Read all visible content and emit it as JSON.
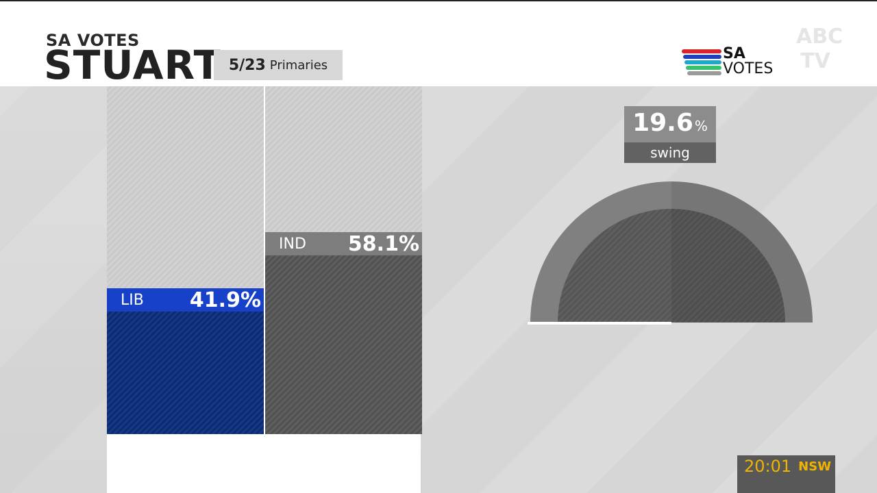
{
  "header": {
    "kicker": "SA VOTES",
    "seat": "STUART",
    "booths_counted": "5/23",
    "count_type": "Primaries"
  },
  "logo": {
    "line1": "SA",
    "line2": "VOTES",
    "stripe_colors": [
      "#d8232a",
      "#1f3fbf",
      "#1fa8c9",
      "#35c46b",
      "#9a9a9a"
    ]
  },
  "watermark": {
    "text": "ABC TV"
  },
  "chart_data": [
    {
      "type": "bar",
      "categories": [
        "LIB",
        "IND"
      ],
      "values": [
        41.9,
        58.1
      ],
      "value_labels": [
        "41.9%",
        "58.1%"
      ],
      "colors": [
        "#0a2d7a",
        "#555555"
      ],
      "label_colors": [
        "#1741c8",
        "#7d7d7d"
      ],
      "ylim": [
        0,
        100
      ],
      "title": "",
      "xlabel": "",
      "ylabel": ""
    },
    {
      "type": "pie",
      "style": "semicircle gauge",
      "swing_value": 19.6,
      "swing_unit": "%",
      "swing_label": "swing",
      "colors": {
        "outer": "#808080",
        "inner": "#5f5f5f",
        "baseline": "#ffffff"
      }
    }
  ],
  "clock": {
    "time": "20:01",
    "zone": "NSW"
  }
}
